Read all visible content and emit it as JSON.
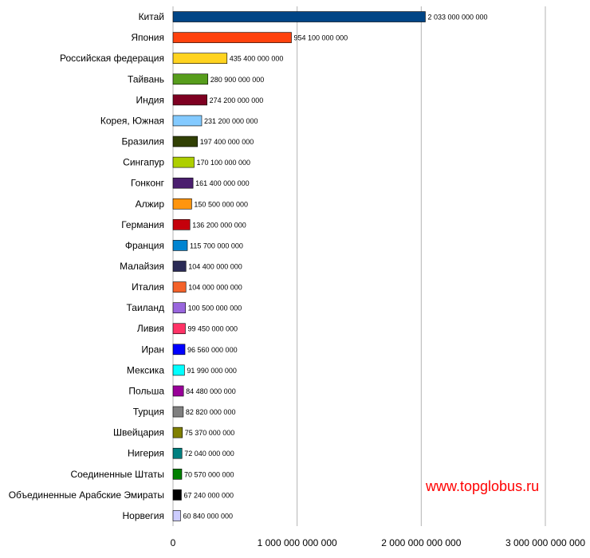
{
  "chart_data": {
    "type": "bar",
    "orientation": "horizontal",
    "title": "",
    "xlabel": "",
    "ylabel": "",
    "xlim": [
      0,
      3000000000000
    ],
    "grid": true,
    "x_ticks": [
      0,
      1000000000000,
      2000000000000,
      3000000000000
    ],
    "x_tick_labels": [
      "0",
      "1 000 000 000 000",
      "2 000 000 000 000",
      "3 000 000 000 000"
    ],
    "categories": [
      "Китай",
      "Япония",
      "Российская федерация",
      "Тайвань",
      "Индия",
      "Корея, Южная",
      "Бразилия",
      "Сингапур",
      "Гонконг",
      "Алжир",
      "Германия",
      "Франция",
      "Малайзия",
      "Италия",
      "Таиланд",
      "Ливия",
      "Иран",
      "Мексика",
      "Польша",
      "Турция",
      "Швейцария",
      "Нигерия",
      "Соединенные Штаты",
      "Объединенные Арабские Эмираты",
      "Норвегия"
    ],
    "values": [
      2033000000000,
      954100000000,
      435400000000,
      280900000000,
      274200000000,
      231200000000,
      197400000000,
      170100000000,
      161400000000,
      150500000000,
      136200000000,
      115700000000,
      104400000000,
      104000000000,
      100500000000,
      99450000000,
      96560000000,
      91990000000,
      84480000000,
      82820000000,
      75370000000,
      72040000000,
      70570000000,
      67240000000,
      60840000000
    ],
    "value_labels": [
      "2 033 000 000 000",
      "954 100 000 000",
      "435 400 000 000",
      "280 900 000 000",
      "274 200 000 000",
      "231 200 000 000",
      "197 400 000 000",
      "170 100 000 000",
      "161 400 000 000",
      "150 500 000 000",
      "136 200 000 000",
      "115 700 000 000",
      "104 400 000 000",
      "104 000 000 000",
      "100 500 000 000",
      "99 450 000 000",
      "96 560 000 000",
      "91 990 000 000",
      "84 480 000 000",
      "82 820 000 000",
      "75 370 000 000",
      "72 040 000 000",
      "70 570 000 000",
      "67 240 000 000",
      "60 840 000 000"
    ],
    "colors": [
      "#004586",
      "#ff420e",
      "#ffd320",
      "#579d1c",
      "#7e0021",
      "#83caff",
      "#314004",
      "#aecf00",
      "#4b1f6f",
      "#ff950e",
      "#c5000b",
      "#0084d1",
      "#2a2a55",
      "#f4622a",
      "#9966dd",
      "#ff3366",
      "#0000ff",
      "#00ffff",
      "#990099",
      "#808080",
      "#808000",
      "#008080",
      "#008000",
      "#000000",
      "#ccccff"
    ]
  },
  "watermark": {
    "text": "www.topglobus.ru",
    "color": "#ff0000"
  }
}
